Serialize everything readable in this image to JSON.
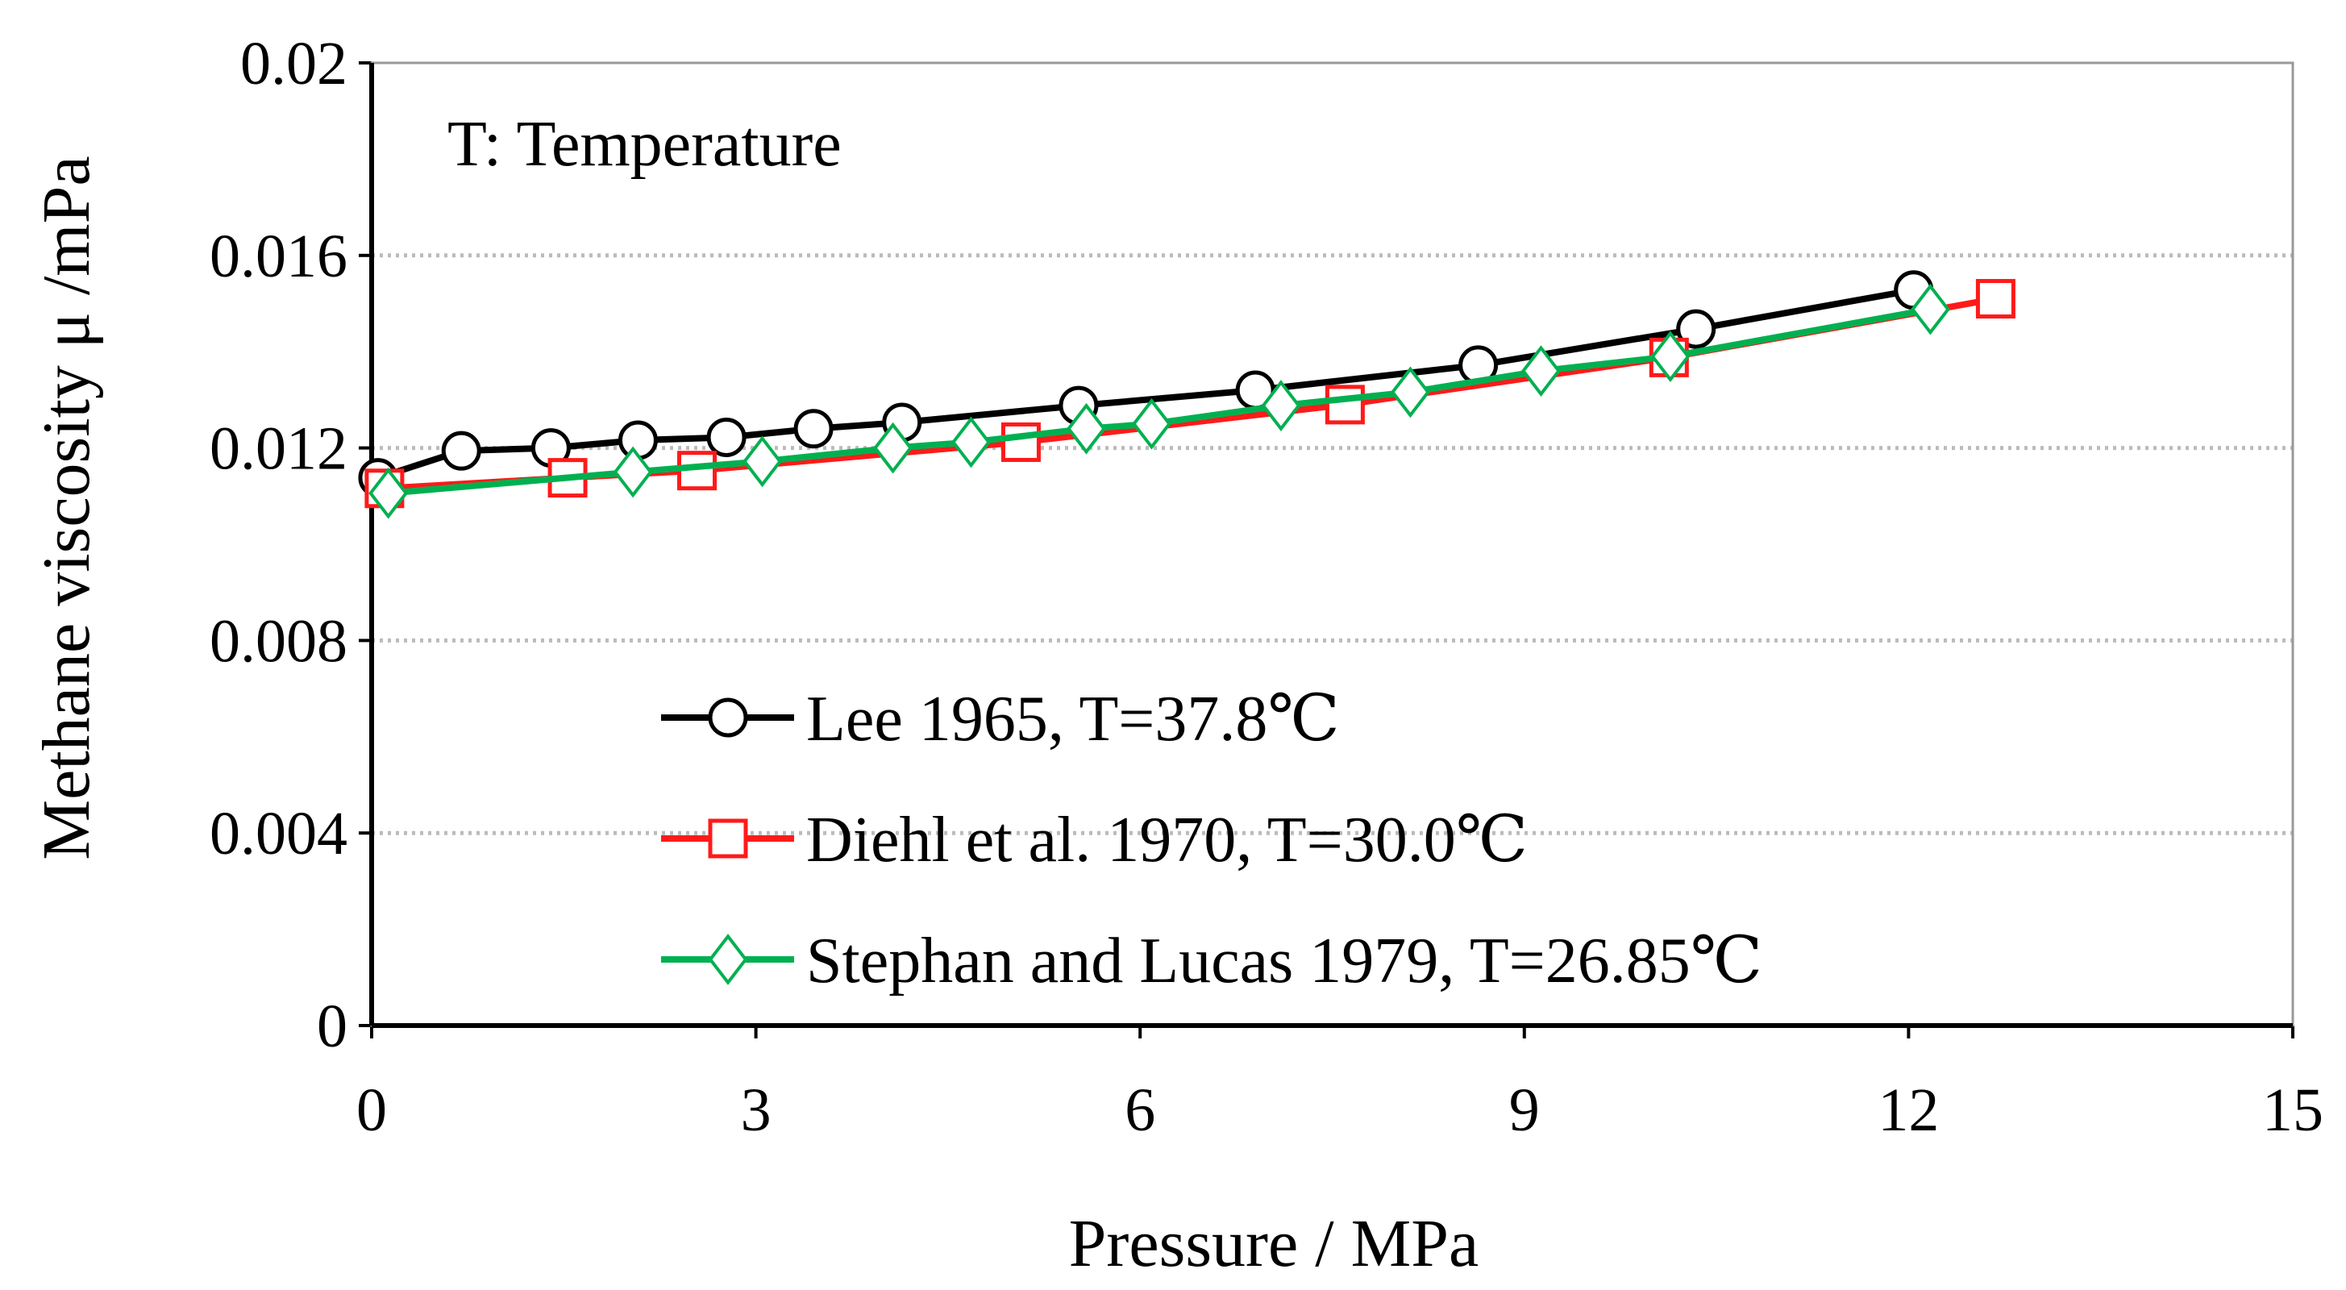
{
  "chart_data": {
    "type": "line",
    "title": "",
    "annotation": "T:  Temperature",
    "xlabel": "Pressure / MPa",
    "ylabel": "Methane viscosity μ /mPa",
    "xlim": [
      0,
      15
    ],
    "ylim": [
      0,
      0.02
    ],
    "xticks": [
      0,
      3,
      6,
      9,
      12,
      15
    ],
    "xtick_labels": [
      "0",
      "3",
      "6",
      "9",
      "12",
      "15"
    ],
    "yticks": [
      0,
      0.004,
      0.008,
      0.012,
      0.016,
      0.02
    ],
    "ytick_labels": [
      "0",
      "0.004",
      "0.008",
      "0.012",
      "0.016",
      "0.02"
    ],
    "grid": "horizontal dotted",
    "legend_position": "bottom-center",
    "series": [
      {
        "name": "Lee 1965, T=37.8℃",
        "color": "#000000",
        "marker": "circle",
        "x": [
          0.05,
          0.7,
          1.4,
          2.08,
          2.77,
          3.45,
          4.14,
          5.52,
          6.9,
          8.64,
          10.34,
          12.04
        ],
        "y": [
          0.01138,
          0.01194,
          0.012,
          0.01216,
          0.01222,
          0.0124,
          0.01253,
          0.01288,
          0.0132,
          0.01372,
          0.01447,
          0.01528
        ]
      },
      {
        "name": "Diehl et al. 1970, T=30.0℃",
        "color": "#ff1a1a",
        "marker": "square",
        "x": [
          0.1,
          1.53,
          2.54,
          5.07,
          7.6,
          10.13,
          12.68
        ],
        "y": [
          0.01116,
          0.01138,
          0.01153,
          0.01212,
          0.0129,
          0.01388,
          0.0151
        ]
      },
      {
        "name": "Stephan and Lucas 1979, T=26.85℃",
        "color": "#00b050",
        "marker": "diamond",
        "x": [
          0.13,
          2.04,
          3.05,
          4.07,
          4.68,
          5.58,
          6.09,
          7.1,
          8.11,
          9.13,
          10.14,
          12.17
        ],
        "y": [
          0.01106,
          0.0115,
          0.01172,
          0.012,
          0.01212,
          0.0124,
          0.0125,
          0.01288,
          0.01316,
          0.0136,
          0.0139,
          0.01488
        ]
      }
    ]
  }
}
